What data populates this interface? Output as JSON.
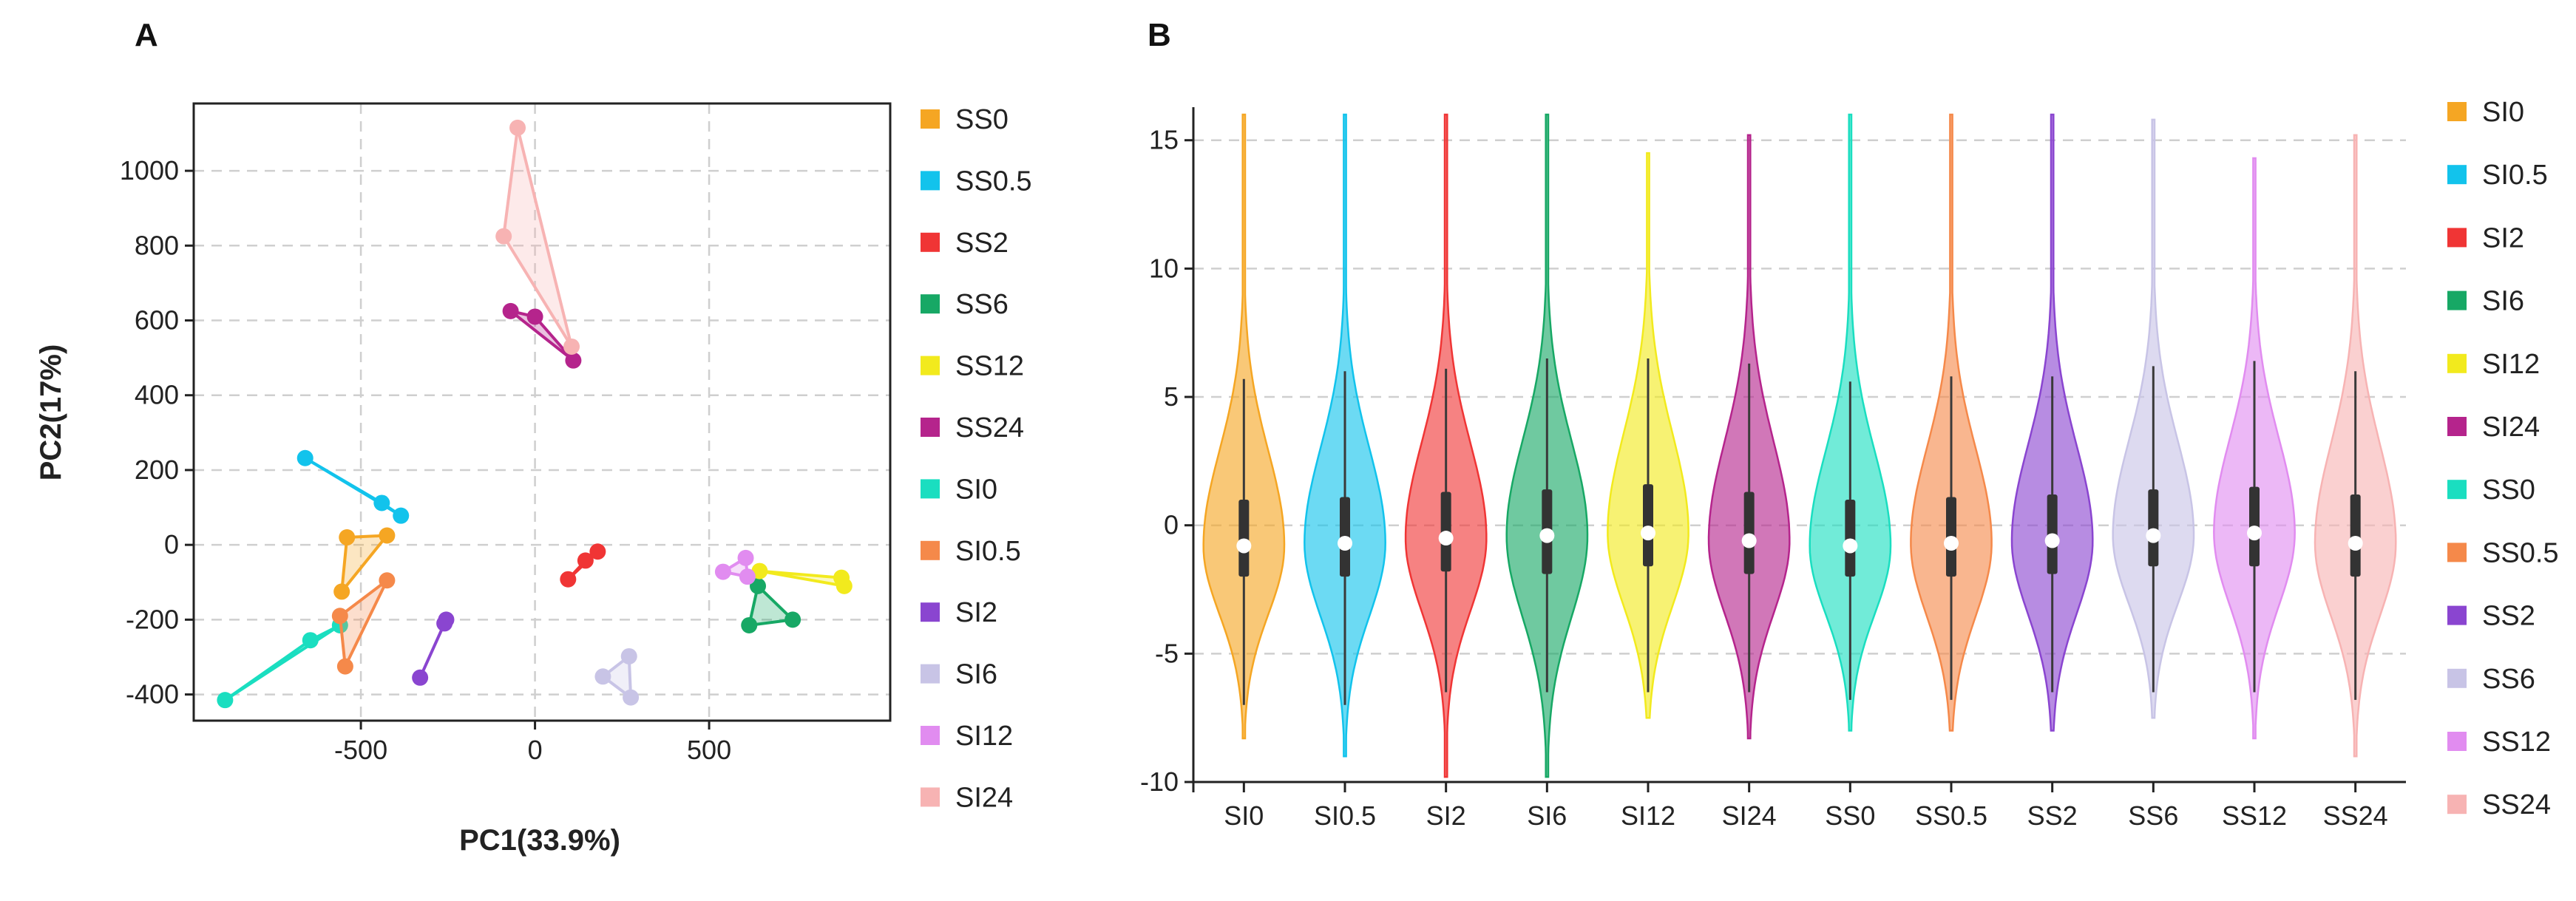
{
  "chart_data": [
    {
      "panel": "A",
      "type": "scatter",
      "xlabel": "PC1(33.9%)",
      "ylabel": "PC2(17%)",
      "xlim": [
        -980,
        1020
      ],
      "ylim": [
        -470,
        1180
      ],
      "xticks": [
        -500,
        0,
        500
      ],
      "yticks": [
        -400,
        -200,
        0,
        200,
        400,
        600,
        800,
        1000
      ],
      "grid": true,
      "legend_position": "right",
      "series": [
        {
          "name": "SS0",
          "color": "#F5A623",
          "points": [
            [
              -540,
              20
            ],
            [
              -425,
              25
            ],
            [
              -555,
              -125
            ]
          ]
        },
        {
          "name": "SS0.5",
          "color": "#12C3EC",
          "points": [
            [
              -660,
              232
            ],
            [
              -440,
              112
            ],
            [
              -385,
              78
            ]
          ]
        },
        {
          "name": "SS2",
          "color": "#F03535",
          "points": [
            [
              95,
              -92
            ],
            [
              145,
              -42
            ],
            [
              180,
              -18
            ]
          ]
        },
        {
          "name": "SS6",
          "color": "#17A865",
          "points": [
            [
              615,
              -215
            ],
            [
              740,
              -200
            ],
            [
              640,
              -110
            ]
          ]
        },
        {
          "name": "SS12",
          "color": "#F2EA1D",
          "points": [
            [
              645,
              -70
            ],
            [
              880,
              -88
            ],
            [
              888,
              -110
            ]
          ]
        },
        {
          "name": "SS24",
          "color": "#B5248C",
          "points": [
            [
              -70,
              625
            ],
            [
              0,
              610
            ],
            [
              110,
              493
            ]
          ]
        },
        {
          "name": "SI0",
          "color": "#1ADEC0",
          "points": [
            [
              -890,
              -415
            ],
            [
              -645,
              -255
            ],
            [
              -560,
              -215
            ]
          ]
        },
        {
          "name": "SI0.5",
          "color": "#F5894A",
          "points": [
            [
              -560,
              -190
            ],
            [
              -545,
              -325
            ],
            [
              -425,
              -95
            ]
          ]
        },
        {
          "name": "SI2",
          "color": "#8A45D0",
          "points": [
            [
              -330,
              -355
            ],
            [
              -255,
              -200
            ],
            [
              -260,
              -210
            ]
          ]
        },
        {
          "name": "SI6",
          "color": "#C8C4E6",
          "points": [
            [
              195,
              -352
            ],
            [
              270,
              -298
            ],
            [
              275,
              -408
            ]
          ]
        },
        {
          "name": "SI12",
          "color": "#E18CF0",
          "points": [
            [
              540,
              -72
            ],
            [
              605,
              -35
            ],
            [
              610,
              -85
            ]
          ]
        },
        {
          "name": "SI24",
          "color": "#F7B3B3",
          "points": [
            [
              -90,
              825
            ],
            [
              -50,
              1115
            ],
            [
              105,
              530
            ]
          ]
        }
      ]
    },
    {
      "panel": "B",
      "type": "violin",
      "ylim": [
        -10,
        16
      ],
      "yticks": [
        -10,
        -5,
        0,
        5,
        10,
        15
      ],
      "grid": true,
      "legend_position": "right",
      "categories": [
        "SI0",
        "SI0.5",
        "SI2",
        "SI6",
        "SI12",
        "SI24",
        "SS0",
        "SS0.5",
        "SS2",
        "SS6",
        "SS12",
        "SS24"
      ],
      "legend": [
        {
          "name": "SI0",
          "color": "#F5A623"
        },
        {
          "name": "SI0.5",
          "color": "#12C3EC"
        },
        {
          "name": "SI2",
          "color": "#F03535"
        },
        {
          "name": "SI6",
          "color": "#17A865"
        },
        {
          "name": "SI12",
          "color": "#F2EA1D"
        },
        {
          "name": "SI24",
          "color": "#B5248C"
        },
        {
          "name": "SS0",
          "color": "#1ADEC0"
        },
        {
          "name": "SS0.5",
          "color": "#F5894A"
        },
        {
          "name": "SS2",
          "color": "#8A45D0"
        },
        {
          "name": "SS6",
          "color": "#C8C4E6"
        },
        {
          "name": "SS12",
          "color": "#E18CF0"
        },
        {
          "name": "SS24",
          "color": "#F7B3B3"
        }
      ],
      "violins": [
        {
          "category": "SI0",
          "color": "#F5A623",
          "min": -8.3,
          "max": 16.0,
          "q1": -2.0,
          "median": -0.8,
          "q3": 1.0,
          "whisker_low": -7.0,
          "whisker_high": 5.7
        },
        {
          "category": "SI0.5",
          "color": "#12C3EC",
          "min": -9.0,
          "max": 16.0,
          "q1": -2.0,
          "median": -0.7,
          "q3": 1.1,
          "whisker_low": -7.0,
          "whisker_high": 6.0
        },
        {
          "category": "SI2",
          "color": "#F03535",
          "min": -9.8,
          "max": 16.0,
          "q1": -1.8,
          "median": -0.5,
          "q3": 1.3,
          "whisker_low": -6.5,
          "whisker_high": 6.1
        },
        {
          "category": "SI6",
          "color": "#17A865",
          "min": -9.8,
          "max": 16.0,
          "q1": -1.9,
          "median": -0.4,
          "q3": 1.4,
          "whisker_low": -6.5,
          "whisker_high": 6.5
        },
        {
          "category": "SI12",
          "color": "#F2EA1D",
          "min": -7.5,
          "max": 14.5,
          "q1": -1.6,
          "median": -0.3,
          "q3": 1.6,
          "whisker_low": -6.5,
          "whisker_high": 6.5
        },
        {
          "category": "SI24",
          "color": "#B5248C",
          "min": -8.3,
          "max": 15.2,
          "q1": -1.9,
          "median": -0.6,
          "q3": 1.3,
          "whisker_low": -6.5,
          "whisker_high": 6.3
        },
        {
          "category": "SS0",
          "color": "#1ADEC0",
          "min": -8.0,
          "max": 16.0,
          "q1": -2.0,
          "median": -0.8,
          "q3": 1.0,
          "whisker_low": -6.8,
          "whisker_high": 5.6
        },
        {
          "category": "SS0.5",
          "color": "#F5894A",
          "min": -8.0,
          "max": 16.0,
          "q1": -2.0,
          "median": -0.7,
          "q3": 1.1,
          "whisker_low": -6.8,
          "whisker_high": 5.8
        },
        {
          "category": "SS2",
          "color": "#8A45D0",
          "min": -8.0,
          "max": 16.0,
          "q1": -1.9,
          "median": -0.6,
          "q3": 1.2,
          "whisker_low": -6.5,
          "whisker_high": 5.8
        },
        {
          "category": "SS6",
          "color": "#C8C4E6",
          "min": -7.5,
          "max": 15.8,
          "q1": -1.6,
          "median": -0.4,
          "q3": 1.4,
          "whisker_low": -6.5,
          "whisker_high": 6.2
        },
        {
          "category": "SS12",
          "color": "#E18CF0",
          "min": -8.3,
          "max": 14.3,
          "q1": -1.6,
          "median": -0.3,
          "q3": 1.5,
          "whisker_low": -6.5,
          "whisker_high": 6.4
        },
        {
          "category": "SS24",
          "color": "#F7B3B3",
          "min": -9.0,
          "max": 15.2,
          "q1": -2.0,
          "median": -0.7,
          "q3": 1.2,
          "whisker_low": -6.8,
          "whisker_high": 6.0
        }
      ]
    }
  ]
}
